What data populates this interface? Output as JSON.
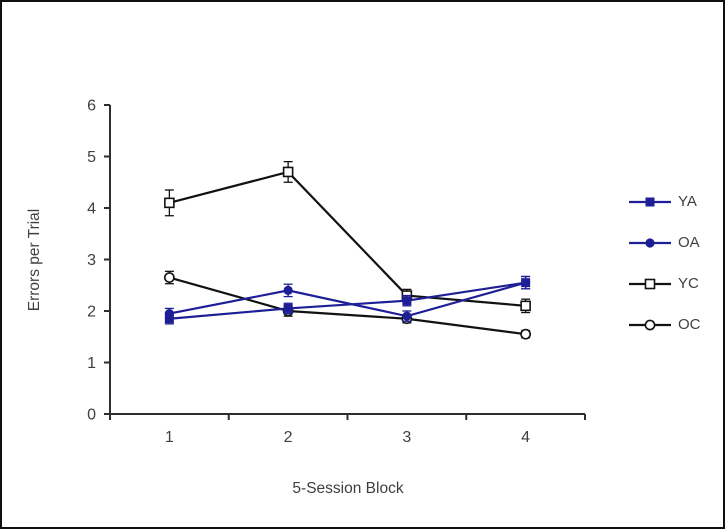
{
  "figure": {
    "background": "#ffffff",
    "border_color": "#101010"
  },
  "chart_data": {
    "type": "line",
    "title": "",
    "xlabel": "5-Session Block",
    "ylabel": "Errors per Trial",
    "x": [
      1,
      2,
      3,
      4
    ],
    "x_tick_labels": [
      "1",
      "2",
      "3",
      "4"
    ],
    "y_ticks": [
      0,
      1,
      2,
      3,
      4,
      5,
      6
    ],
    "ylim": [
      0,
      6
    ],
    "grid": false,
    "legend_position": "right",
    "axis_color": "#2e2e2e",
    "label_color": "#3f3f3f",
    "error_bars": true,
    "draw_order": [
      "YC",
      "OC",
      "YA",
      "OA"
    ],
    "series": [
      {
        "name": "YA",
        "color": "#1e1e96",
        "marker": "filled-square",
        "values": [
          1.85,
          2.05,
          2.2,
          2.55
        ],
        "errors": [
          0.1,
          0.1,
          0.1,
          0.12
        ]
      },
      {
        "name": "OA",
        "color": "#1e1e96",
        "marker": "filled-circle",
        "values": [
          1.95,
          2.4,
          1.9,
          2.55
        ],
        "errors": [
          0.1,
          0.12,
          0.1,
          0.12
        ]
      },
      {
        "name": "YC",
        "color": "#121212",
        "marker": "open-square",
        "values": [
          4.1,
          4.7,
          2.3,
          2.1
        ],
        "errors": [
          0.25,
          0.2,
          0.12,
          0.13
        ]
      },
      {
        "name": "OC",
        "color": "#121212",
        "marker": "open-circle",
        "values": [
          2.65,
          2.0,
          1.85,
          1.55
        ],
        "errors": [
          0.12,
          0.1,
          0.08,
          0.07
        ]
      }
    ]
  }
}
